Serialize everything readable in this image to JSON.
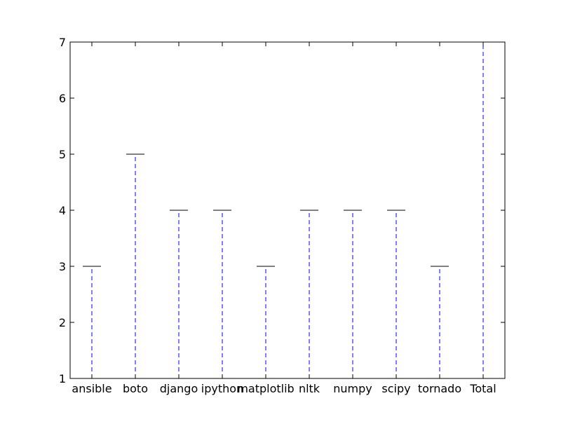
{
  "chart_data": {
    "type": "boxplot",
    "title": "",
    "xlabel": "",
    "ylabel": "",
    "categories": [
      "ansible",
      "boto",
      "django",
      "ipython",
      "matplotlib",
      "nltk",
      "numpy",
      "scipy",
      "tornado",
      "Total"
    ],
    "series": [
      {
        "whisker_low": [
          1,
          1,
          1,
          1,
          1,
          1,
          1,
          1,
          1,
          1
        ],
        "q1": [
          1,
          1,
          1,
          1,
          1,
          1,
          1,
          1,
          1,
          1
        ],
        "median": [
          1,
          1,
          1,
          1,
          1,
          1,
          1,
          1,
          1,
          1
        ],
        "q3": [
          1,
          1,
          1,
          1,
          1,
          1,
          1,
          1,
          1,
          1
        ],
        "whisker_high": [
          3,
          5,
          4,
          4,
          3,
          4,
          4,
          4,
          3,
          7
        ]
      }
    ],
    "yticks": [
      1,
      2,
      3,
      4,
      5,
      6,
      7
    ],
    "ylim": [
      1,
      7
    ],
    "grid": false,
    "colors": {
      "box": "#0000ff",
      "whisker": "#0000ff",
      "cap": "#000000",
      "median": "#ff0000",
      "axes": "#000000",
      "background": "#ffffff"
    }
  }
}
